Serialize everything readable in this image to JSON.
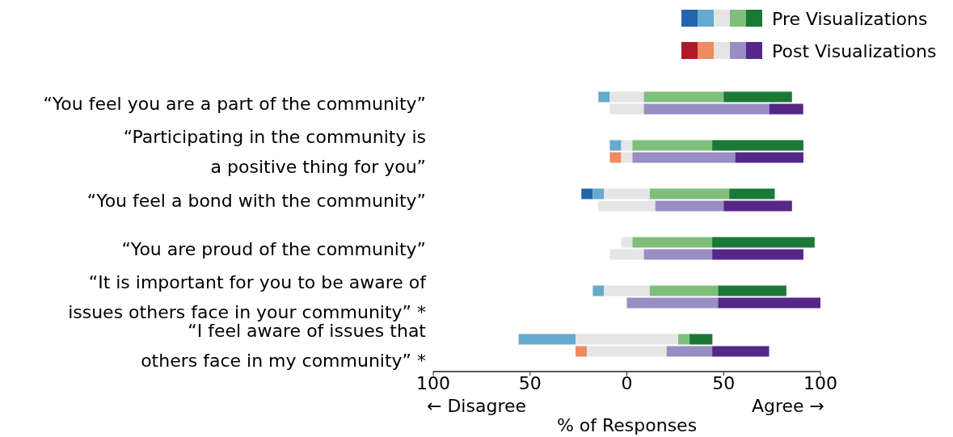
{
  "chart_data": {
    "type": "bar",
    "orientation": "horizontal",
    "categories": [
      "“You feel you are a part of the community”",
      "“Participating in the community is\na positive thing for you”",
      "“You feel a bond with the community”",
      "“You are proud of the community”",
      "“It is important for you to be aware of\nissues others face in your community” *",
      "“I feel aware of issues that\nothers face in my community” *"
    ],
    "series": [
      {
        "color": "#2166ac",
        "values": [
          null,
          null,
          5.9,
          null,
          null,
          null
        ],
        "base": [
          null,
          null,
          -23.5,
          null,
          null,
          null
        ]
      },
      {
        "color": "#67a9cf",
        "values": [
          5.9,
          5.9,
          5.9,
          null,
          5.9,
          29.4
        ],
        "base": [
          -14.7,
          -8.8,
          -17.6,
          null,
          -17.6,
          -55.9
        ]
      },
      {
        "color": "#e5e5e5",
        "values": [
          17.6,
          5.9,
          23.5,
          5.9,
          23.5,
          52.9
        ],
        "base": [
          -8.8,
          -2.9,
          -11.8,
          -2.9,
          -11.8,
          -26.5
        ]
      },
      {
        "color": "#7fbf7b",
        "values": [
          41.2,
          41.2,
          41.2,
          41.2,
          35.3,
          5.9
        ],
        "base": [
          8.8,
          2.9,
          11.8,
          2.9,
          11.8,
          26.5
        ]
      },
      {
        "name": "Pre Visualizations",
        "color": "#1b7837",
        "values": [
          35.3,
          47.1,
          23.5,
          52.9,
          35.3,
          11.8
        ],
        "base": [
          50,
          44.1,
          52.9,
          44.1,
          47.1,
          32.4
        ]
      },
      {
        "color": "#b2182b",
        "values": [
          null,
          null,
          null,
          null,
          null,
          null
        ],
        "base": [
          null,
          null,
          null,
          null,
          null,
          null
        ]
      },
      {
        "color": "#ef8a62",
        "values": [
          null,
          5.9,
          null,
          null,
          null,
          5.9
        ],
        "base": [
          null,
          -8.8,
          null,
          null,
          null,
          -26.5
        ]
      },
      {
        "color": "#e5e5e5",
        "values": [
          17.6,
          5.9,
          29.4,
          17.6,
          null,
          41.2
        ],
        "base": [
          -8.8,
          -2.9,
          -14.7,
          -8.8,
          null,
          -20.6
        ]
      },
      {
        "color": "#998ec3",
        "values": [
          64.7,
          52.9,
          35.3,
          35.3,
          47.1,
          23.5
        ],
        "base": [
          8.8,
          2.9,
          14.7,
          8.8,
          0,
          20.6
        ]
      },
      {
        "name": "Post Visualizations",
        "color": "#542788",
        "values": [
          17.6,
          35.3,
          35.3,
          47.1,
          52.9,
          29.4
        ],
        "base": [
          73.5,
          55.9,
          50,
          44.1,
          47.1,
          44.1
        ]
      }
    ],
    "xlim": [
      -100,
      100
    ],
    "xticks": [
      {
        "value": -100,
        "label": "100"
      },
      {
        "value": -50,
        "label": "50"
      },
      0,
      50,
      100
    ],
    "xlabel": "% of Responses",
    "annotations": [
      "← Disagree",
      "Agree →"
    ],
    "legend": "top right"
  }
}
